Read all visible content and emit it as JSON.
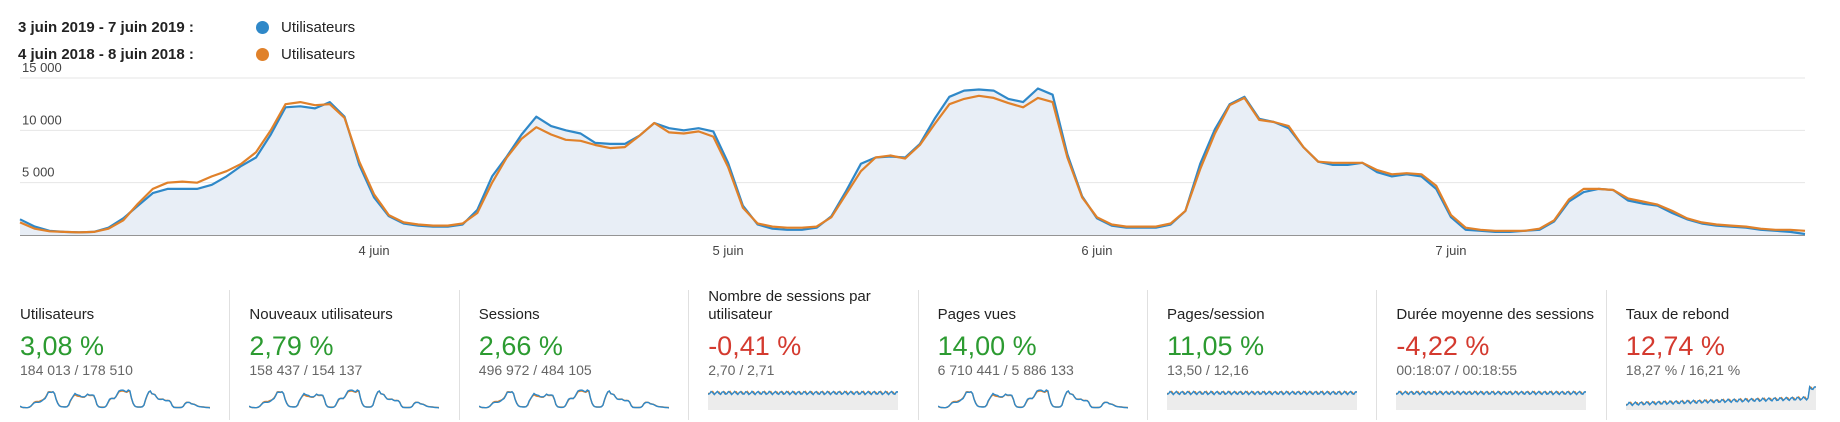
{
  "legend": [
    {
      "range": "3 juin 2019 - 7 juin 2019 :",
      "series": "Utilisateurs",
      "color": "#2f88c8"
    },
    {
      "range": "4 juin 2018 - 8 juin 2018 :",
      "series": "Utilisateurs",
      "color": "#e0812a"
    }
  ],
  "chart_data": {
    "type": "line",
    "y_ticks": [
      "15 000",
      "10 000",
      "5 000"
    ],
    "ylim": [
      0,
      15000
    ],
    "x_ticks": [
      "4 juin",
      "5 juin",
      "6 juin",
      "7 juin"
    ],
    "grid": true,
    "series": [
      {
        "name": "Utilisateurs",
        "period": "3 juin 2019 - 7 juin 2019",
        "color": "#2f88c8",
        "values": [
          1500,
          800,
          400,
          300,
          250,
          300,
          700,
          1600,
          2800,
          4000,
          4400,
          4400,
          4400,
          4800,
          5600,
          6600,
          7400,
          9600,
          12200,
          12300,
          12100,
          12700,
          11300,
          6700,
          3600,
          1800,
          1100,
          900,
          800,
          800,
          1000,
          2400,
          5600,
          7500,
          9600,
          11300,
          10400,
          10000,
          9700,
          8800,
          8700,
          8700,
          9500,
          10700,
          10200,
          10000,
          10200,
          9900,
          6900,
          2800,
          1000,
          600,
          500,
          500,
          700,
          1800,
          4200,
          6800,
          7400,
          7500,
          7400,
          8700,
          11100,
          13200,
          13800,
          13900,
          13800,
          13000,
          12700,
          14000,
          13400,
          7700,
          3700,
          1600,
          900,
          700,
          700,
          700,
          1000,
          2300,
          6800,
          10100,
          12500,
          13200,
          11100,
          10800,
          10200,
          8400,
          7000,
          6700,
          6700,
          6900,
          6000,
          5600,
          5800,
          5600,
          4400,
          1700,
          500,
          400,
          300,
          300,
          400,
          500,
          1300,
          3200,
          4100,
          4400,
          4300,
          3300,
          3000,
          2800,
          2100,
          1500,
          1100,
          900,
          800,
          700,
          500,
          400,
          300,
          100
        ]
      },
      {
        "name": "Utilisateurs",
        "period": "4 juin 2018 - 8 juin 2018",
        "color": "#e0812a",
        "values": [
          1200,
          600,
          350,
          300,
          250,
          300,
          600,
          1400,
          3000,
          4400,
          5000,
          5100,
          5000,
          5600,
          6100,
          6800,
          7900,
          10000,
          12500,
          12700,
          12400,
          12500,
          11200,
          7000,
          3900,
          1900,
          1200,
          1000,
          900,
          900,
          1100,
          2100,
          5000,
          7400,
          9200,
          10300,
          9600,
          9100,
          9000,
          8600,
          8300,
          8400,
          9500,
          10700,
          9800,
          9700,
          9900,
          9400,
          6500,
          2600,
          1100,
          800,
          700,
          700,
          800,
          1700,
          3900,
          6100,
          7400,
          7600,
          7300,
          8600,
          10600,
          12500,
          13000,
          13300,
          13100,
          12600,
          12200,
          13100,
          12700,
          7400,
          3600,
          1700,
          1000,
          800,
          800,
          800,
          1100,
          2300,
          6300,
          9700,
          12400,
          13100,
          11000,
          10800,
          10400,
          8400,
          7000,
          6900,
          6900,
          6900,
          6200,
          5800,
          5900,
          5800,
          4700,
          1900,
          700,
          500,
          400,
          400,
          400,
          600,
          1400,
          3400,
          4400,
          4400,
          4300,
          3500,
          3200,
          2900,
          2300,
          1600,
          1200,
          1000,
          900,
          800,
          600,
          500,
          500,
          400
        ]
      }
    ]
  },
  "metrics": [
    {
      "name": "Utilisateurs",
      "change": "3,08 %",
      "dir": "up",
      "values": "184 013 / 178 510"
    },
    {
      "name": "Nouveaux utilisateurs",
      "change": "2,79 %",
      "dir": "up",
      "values": "158 437 / 154 137"
    },
    {
      "name": "Sessions",
      "change": "2,66 %",
      "dir": "up",
      "values": "496 972 / 484 105"
    },
    {
      "name": "Nombre de sessions par utilisateur",
      "change": "-0,41 %",
      "dir": "down",
      "values": "2,70 / 2,71"
    },
    {
      "name": "Pages vues",
      "change": "14,00 %",
      "dir": "up",
      "values": "6 710 441 / 5 886 133"
    },
    {
      "name": "Pages/session",
      "change": "11,05 %",
      "dir": "up",
      "values": "13,50 / 12,16"
    },
    {
      "name": "Durée moyenne des sessions",
      "change": "-4,22 %",
      "dir": "down",
      "values": "00:18:07 / 00:18:55"
    },
    {
      "name": "Taux de rebond",
      "change": "12,74 %",
      "dir": "down",
      "values": "18,27 % / 16,21 %"
    }
  ]
}
